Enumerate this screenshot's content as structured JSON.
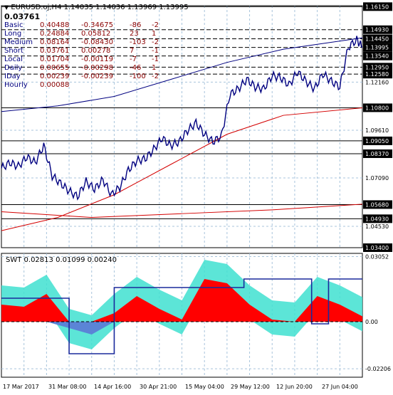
{
  "header": {
    "symbol": "EURUSD.oj,H4",
    "ohlc": [
      "1.14035",
      "1.14036",
      "1.13969",
      "1.13995"
    ],
    "value": "0.03761"
  },
  "stats_rows": [
    {
      "name": "Basic",
      "v1": "0.40488",
      "v2": "-0.34675",
      "v3": "-86",
      "v4": "-2"
    },
    {
      "name": "Long",
      "v1": "0.24884",
      "v2": "0.05812",
      "v3": "23",
      "v4": "1"
    },
    {
      "name": "Medium",
      "v1": "0.08164",
      "v2": "-0.08430",
      "v3": "-103",
      "v4": "-2"
    },
    {
      "name": "Short",
      "v1": "0.03761",
      "v2": "0.00278",
      "v3": "7",
      "v4": "-1"
    },
    {
      "name": "Local",
      "v1": "0.01704",
      "v2": "-0.00119",
      "v3": "-7",
      "v4": "-1"
    },
    {
      "name": "Daily",
      "v1": "0.00655",
      "v2": "-0.00298",
      "v3": "-46",
      "v4": "1"
    },
    {
      "name": "IDay",
      "v1": "0.00239",
      "v2": "-0.00239",
      "v3": "-100",
      "v4": "-2"
    },
    {
      "name": "Hourly",
      "v1": "0.00088",
      "v2": "",
      "v3": "",
      "v4": ""
    }
  ],
  "colors": {
    "price": "#000080",
    "label_text": "#000080",
    "stat_values": "#8b0000",
    "ma_red": "#d40000",
    "swt_red": "#ff0000",
    "swt_cyan": "#40e0d0",
    "swt_blue": "#5b84d6",
    "swt_line": "#1a2a9c",
    "grid": "#a8c4dc"
  },
  "chart_data": [
    {
      "type": "line",
      "title": "EURUSD.oj,H4",
      "ylim": [
        1.034,
        1.162
      ],
      "x_tick_labels": [
        "17 Mar 2017",
        "31 Mar 08:00",
        "14 Apr 16:00",
        "30 Apr 21:00",
        "15 May 04:00",
        "29 May 12:00",
        "12 Jun 20:00",
        "27 Jun 04:00"
      ],
      "y_tick_labels": [
        "1.16150",
        "1.14930",
        "1.14450",
        "1.13995",
        "1.13540",
        "1.12950",
        "1.12580",
        "1.12160",
        "1.10800",
        "1.09610",
        "1.09050",
        "1.08370",
        "1.07090",
        "1.05680",
        "1.04930",
        "1.04530",
        "1.03400"
      ],
      "highlighted_levels": [
        1.1615,
        1.1493,
        1.1445,
        1.13995,
        1.1354,
        1.1295,
        1.1258,
        1.108,
        1.0905,
        1.0837,
        1.0568,
        1.0493,
        1.034
      ],
      "series": [
        {
          "kind": "price",
          "x": [
            0,
            3,
            6,
            9,
            12,
            15,
            18,
            21,
            24,
            27,
            30,
            33,
            36,
            39,
            42,
            45,
            48,
            51,
            54,
            57,
            60,
            63,
            66,
            69,
            72,
            75,
            78,
            81,
            84,
            87,
            90,
            93,
            96,
            99,
            102,
            105,
            108,
            111,
            114,
            117,
            120,
            123,
            126,
            128
          ],
          "y": [
            1.076,
            1.079,
            1.077,
            1.082,
            1.079,
            1.088,
            1.072,
            1.068,
            1.064,
            1.061,
            1.069,
            1.065,
            1.07,
            1.062,
            1.066,
            1.075,
            1.08,
            1.081,
            1.086,
            1.092,
            1.088,
            1.09,
            1.096,
            1.1,
            1.094,
            1.09,
            1.093,
            1.115,
            1.118,
            1.123,
            1.119,
            1.118,
            1.125,
            1.124,
            1.12,
            1.127,
            1.122,
            1.118,
            1.126,
            1.122,
            1.119,
            1.14,
            1.144,
            1.14
          ]
        },
        {
          "kind": "ma_slow",
          "x": [
            0,
            32,
            64,
            96,
            128
          ],
          "y": [
            1.053,
            1.05,
            1.052,
            1.054,
            1.057
          ]
        },
        {
          "kind": "ma_mid",
          "x": [
            0,
            20,
            40,
            60,
            80,
            100,
            128
          ],
          "y": [
            1.043,
            1.05,
            1.062,
            1.078,
            1.094,
            1.104,
            1.108
          ]
        },
        {
          "kind": "envelope",
          "x": [
            0,
            20,
            40,
            60,
            80,
            100,
            128
          ],
          "y": [
            1.106,
            1.109,
            1.114,
            1.123,
            1.132,
            1.139,
            1.145
          ]
        }
      ]
    },
    {
      "type": "area",
      "title": "SWT",
      "values": [
        "0.02813",
        "0.01099",
        "0.00240"
      ],
      "ylim": [
        -0.026,
        0.032
      ],
      "y_tick_labels": [
        "0.03052",
        "0.00",
        "-0.02206"
      ],
      "series": [
        {
          "name": "SWT",
          "x": [
            0,
            8,
            16,
            24,
            32,
            40,
            48,
            56,
            64,
            72,
            80,
            88,
            96,
            104,
            112,
            120,
            128
          ],
          "y": [
            0.008,
            0.007,
            0.013,
            -0.003,
            -0.006,
            0.004,
            0.012,
            0.006,
            0.001,
            0.02,
            0.018,
            0.008,
            0.001,
            0.0,
            0.012,
            0.008,
            0.0025
          ]
        }
      ]
    }
  ]
}
